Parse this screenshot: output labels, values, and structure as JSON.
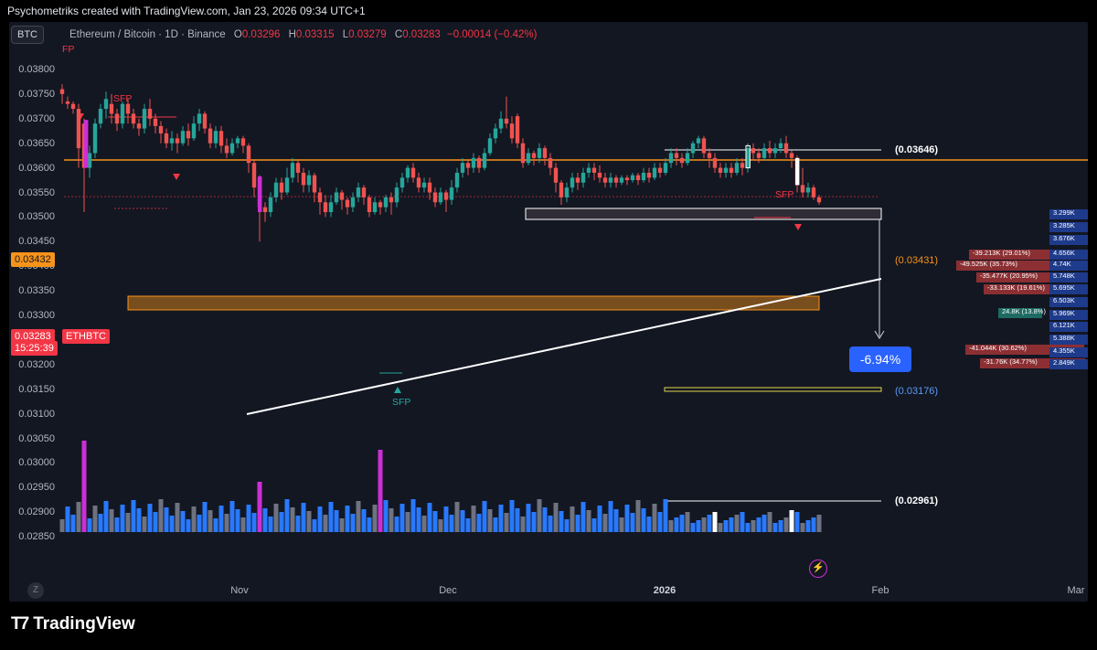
{
  "header": {
    "credit": "Psychometriks created with TradingView.com, Jan 23, 2026 09:34 UTC+1"
  },
  "symbol_button": "BTC",
  "legend": {
    "title": "Ethereum / Bitcoin · 1D · Binance",
    "open_key": "O",
    "open": "0.03296",
    "high_key": "H",
    "high": "0.03315",
    "low_key": "L",
    "low": "0.03279",
    "close_key": "C",
    "close": "0.03283",
    "change": "−0.00014 (−0.42%)"
  },
  "y_axis_labels": [
    "0.03800",
    "0.03750",
    "0.03700",
    "0.03650",
    "0.03600",
    "0.03550",
    "0.03500",
    "0.03450",
    "0.03400",
    "0.03350",
    "0.03300",
    "0.03250",
    "0.03200",
    "0.03150",
    "0.03100",
    "0.03050",
    "0.03000",
    "0.02950",
    "0.02900",
    "0.02850"
  ],
  "price_tags": {
    "orange_level": "0.03432",
    "current_price": "0.03283",
    "countdown": "15:25:39",
    "symbol": "ETHBTC"
  },
  "x_axis_labels": [
    "Nov",
    "Dec",
    "2026",
    "Feb",
    "Mar"
  ],
  "levels": {
    "upper_target": "(0.03646)",
    "orange_right": "(0.03431)",
    "lower_target": "(0.03176)",
    "bottom_target": "(0.02961)"
  },
  "percent_box": "-6.94%",
  "annotations": {
    "sfp_left": "SFP",
    "sfp_bottom": "SFP",
    "sfp_right": "SFP",
    "fp_top": "FP"
  },
  "z_button": "Z",
  "footer": {
    "brand": "TradingView"
  },
  "colors": {
    "up": "#26a69a",
    "down": "#ef5350",
    "orange": "#f7931a",
    "volume_magenta": "#cc2fd6",
    "volume_blue": "#2979ff",
    "volume_gray": "#6f7380",
    "background": "#131722"
  },
  "volume_profile_labels": [
    "-39.213K (29.01%)",
    "-49.525K (35.73%)",
    "-35.477K (20.95%)",
    "-33.133K (19.61%)",
    "24.8K (13.8%)",
    "-41.044K (30.62%)",
    "-31.76K (34.77%)",
    "4.656K",
    "4.74K",
    "5.748K",
    "5.695K",
    "6.503K",
    "5.969K",
    "6.121K",
    "5.388K",
    "4.355K",
    "2.849K",
    "3.285K",
    "3.676K",
    "3.299K"
  ]
}
